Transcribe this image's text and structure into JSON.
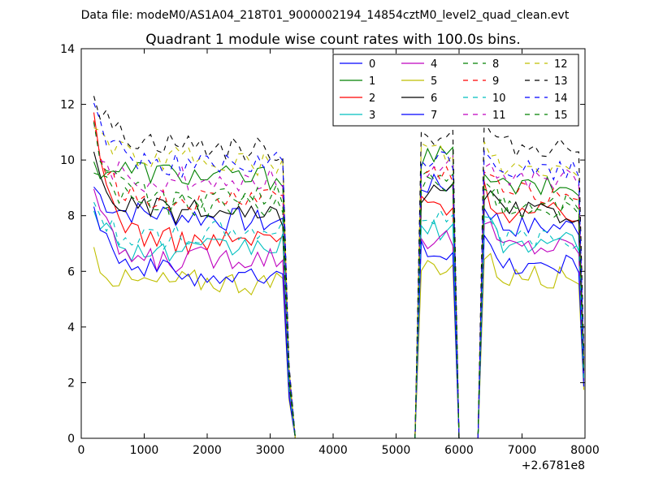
{
  "header": {
    "data_file": "Data file: modeM0/AS1A04_218T01_9000002194_14854cztM0_level2_quad_clean.evt"
  },
  "chart_data": {
    "type": "line",
    "title": "Quadrant 1 module wise count rates with 100.0s bins.",
    "xlabel": "",
    "ylabel": "",
    "x_offset_label": "+2.6781e8",
    "xlim": [
      0,
      8000
    ],
    "ylim": [
      0,
      14
    ],
    "x_ticks": [
      "0",
      "1000",
      "2000",
      "3000",
      "4000",
      "5000",
      "6000",
      "7000",
      "8000"
    ],
    "y_ticks": [
      "0",
      "2",
      "4",
      "6",
      "8",
      "10",
      "12",
      "14"
    ],
    "grid": false,
    "legend_position": "top-right",
    "x_segments": [
      {
        "start": 200,
        "end": 3200,
        "step": 100
      },
      {
        "start": 5400,
        "end": 5900,
        "step": 100
      },
      {
        "start": 6400,
        "end": 7900,
        "step": 100
      }
    ],
    "series": [
      {
        "name": "0",
        "color": "#0000ff",
        "dash": false,
        "level": 7.9,
        "s1_start": 9.0,
        "s2_level": 9.1,
        "s3_level": 7.6
      },
      {
        "name": "1",
        "color": "#008000",
        "dash": false,
        "level": 9.5,
        "s1_start": 9.6,
        "s2_level": 10.1,
        "s3_level": 9.0
      },
      {
        "name": "2",
        "color": "#ff0000",
        "dash": false,
        "level": 7.2,
        "s1_start": 11.2,
        "s2_level": 8.4,
        "s3_level": 8.1
      },
      {
        "name": "3",
        "color": "#00bfbf",
        "dash": false,
        "level": 6.8,
        "s1_start": 8.5,
        "s2_level": 7.5,
        "s3_level": 7.0
      },
      {
        "name": "4",
        "color": "#bf00bf",
        "dash": false,
        "level": 6.4,
        "s1_start": 9.2,
        "s2_level": 7.2,
        "s3_level": 6.9
      },
      {
        "name": "5",
        "color": "#bfbf00",
        "dash": false,
        "level": 5.5,
        "s1_start": 6.9,
        "s2_level": 6.2,
        "s3_level": 5.8
      },
      {
        "name": "6",
        "color": "#000000",
        "dash": false,
        "level": 8.0,
        "s1_start": 10.0,
        "s2_level": 8.8,
        "s3_level": 8.1
      },
      {
        "name": "7",
        "color": "#0000ff",
        "dash": false,
        "level": 5.9,
        "s1_start": 8.6,
        "s2_level": 6.8,
        "s3_level": 6.2
      },
      {
        "name": "8",
        "color": "#008000",
        "dash": true,
        "level": 8.5,
        "s1_start": 9.6,
        "s2_level": 9.3,
        "s3_level": 8.3
      },
      {
        "name": "9",
        "color": "#ff0000",
        "dash": true,
        "level": 8.6,
        "s1_start": 11.4,
        "s2_level": 9.5,
        "s3_level": 8.8
      },
      {
        "name": "10",
        "color": "#00bfbf",
        "dash": true,
        "level": 7.3,
        "s1_start": 8.4,
        "s2_level": 8.0,
        "s3_level": 7.2
      },
      {
        "name": "11",
        "color": "#bf00bf",
        "dash": true,
        "level": 9.2,
        "s1_start": 11.1,
        "s2_level": 9.8,
        "s3_level": 9.3
      },
      {
        "name": "12",
        "color": "#bfbf00",
        "dash": true,
        "level": 9.9,
        "s1_start": 11.5,
        "s2_level": 10.3,
        "s3_level": 9.6
      },
      {
        "name": "13",
        "color": "#000000",
        "dash": true,
        "level": 10.5,
        "s1_start": 12.3,
        "s2_level": 10.9,
        "s3_level": 10.5
      },
      {
        "name": "14",
        "color": "#0000ff",
        "dash": true,
        "level": 9.9,
        "s1_start": 11.8,
        "s2_level": 10.0,
        "s3_level": 9.6
      },
      {
        "name": "15",
        "color": "#008000",
        "dash": true,
        "level": 8.7,
        "s1_start": 11.0,
        "s2_level": 9.1,
        "s3_level": 8.4
      }
    ]
  }
}
